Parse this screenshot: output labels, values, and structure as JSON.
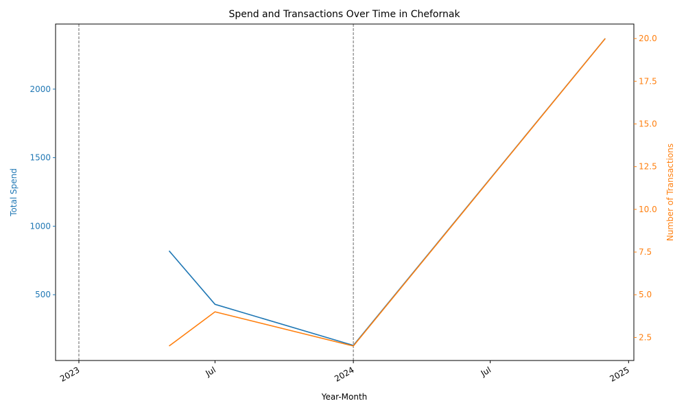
{
  "chart_data": {
    "type": "line",
    "title": "Spend and Transactions Over Time in Chefornak",
    "xlabel": "Year-Month",
    "ylabel_left": "Total Spend",
    "ylabel_right": "Number of Transactions",
    "x_range": [
      "2022-12-01",
      "2025-01-08"
    ],
    "x_ticks": [
      {
        "date": "2023-01-01",
        "label": "2023"
      },
      {
        "date": "2023-07-01",
        "label": "Jul"
      },
      {
        "date": "2024-01-01",
        "label": "2024"
      },
      {
        "date": "2024-07-01",
        "label": "Jul"
      },
      {
        "date": "2025-01-01",
        "label": "2025"
      }
    ],
    "vertical_markers": [
      "2023-01-01",
      "2024-01-01"
    ],
    "left_axis": {
      "ylim": [
        20,
        2475
      ],
      "ticks": [
        500,
        1000,
        1500,
        2000
      ],
      "color": "#1f77b4"
    },
    "right_axis": {
      "ylim": [
        1.15,
        20.85
      ],
      "ticks": [
        2.5,
        5.0,
        7.5,
        10.0,
        12.5,
        15.0,
        17.5,
        20.0
      ],
      "color": "#ff7f0e"
    },
    "series": [
      {
        "name": "Total Spend",
        "axis": "left",
        "color": "#1f77b4",
        "points": [
          {
            "x": "2023-05-01",
            "y": 820
          },
          {
            "x": "2023-07-01",
            "y": 430
          },
          {
            "x": "2024-01-01",
            "y": 130
          },
          {
            "x": "2024-12-01",
            "y": 2370
          }
        ]
      },
      {
        "name": "Number of Transactions",
        "axis": "right",
        "color": "#ff7f0e",
        "points": [
          {
            "x": "2023-05-01",
            "y": 2
          },
          {
            "x": "2023-07-01",
            "y": 4
          },
          {
            "x": "2024-01-01",
            "y": 2
          },
          {
            "x": "2024-12-01",
            "y": 20
          }
        ]
      }
    ],
    "grid": false,
    "legend": "none"
  }
}
